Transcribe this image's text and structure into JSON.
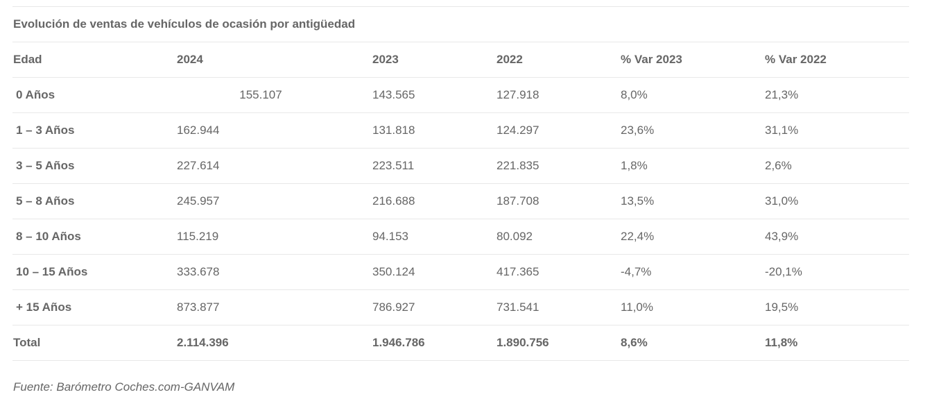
{
  "table": {
    "title": "Evolución de ventas de vehículos de ocasión por antigüedad",
    "headers": [
      "Edad",
      "2024",
      "2023",
      "2022",
      "% Var 2023",
      "% Var 2022"
    ],
    "rows": [
      [
        "0 Años",
        "155.107",
        "143.565",
        "127.918",
        "8,0%",
        "21,3%"
      ],
      [
        "1 – 3 Años",
        "162.944",
        "131.818",
        "124.297",
        "23,6%",
        "31,1%"
      ],
      [
        "3 – 5 Años",
        "227.614",
        "223.511",
        "221.835",
        "1,8%",
        "2,6%"
      ],
      [
        "5 – 8 Años",
        "245.957",
        "216.688",
        "187.708",
        "13,5%",
        "31,0%"
      ],
      [
        "8 – 10 Años",
        "115.219",
        "94.153",
        "80.092",
        "22,4%",
        "43,9%"
      ],
      [
        "10 – 15 Años",
        "333.678",
        "350.124",
        "417.365",
        "-4,7%",
        "-20,1%"
      ],
      [
        "+ 15 Años",
        "873.877",
        "786.927",
        "731.541",
        "11,0%",
        "19,5%"
      ]
    ],
    "total": [
      "Total",
      "2.114.396",
      "1.946.786",
      "1.890.756",
      "8,6%",
      "11,8%"
    ]
  },
  "source": "Fuente: Barómetro Coches.com-GANVAM"
}
